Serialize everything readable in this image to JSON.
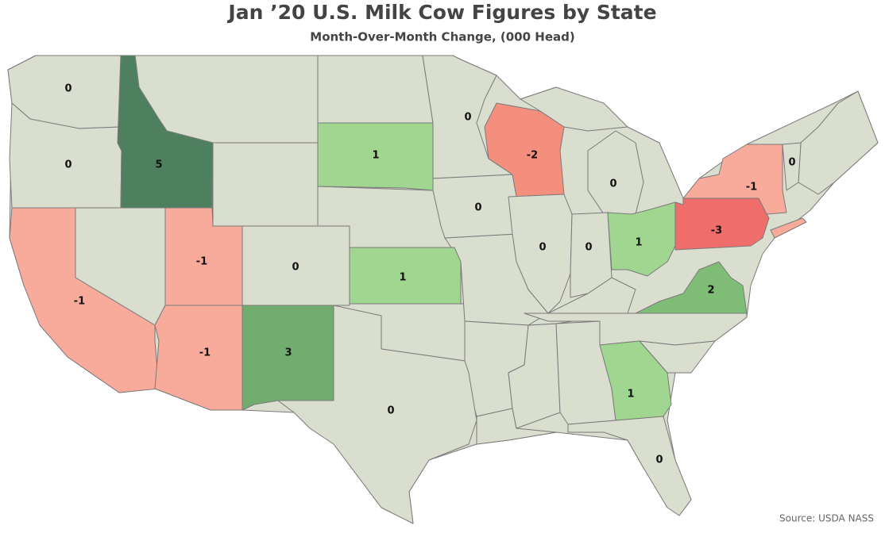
{
  "title": "Jan ’20 U.S. Milk Cow Figures by State",
  "subtitle": "Month-Over-Month Change, (000 Head)",
  "source": "Source: USDA NASS",
  "map": {
    "type": "choropleth",
    "regions": [
      {
        "value": 0,
        "color": "#d9dece"
      },
      {
        "value": 0,
        "color": "#d9dece"
      },
      {
        "value": 5,
        "color": "#4e8060"
      },
      {
        "value": -1,
        "color": "#f8ab9b"
      },
      {
        "value": -1,
        "color": "#f8ab9b"
      },
      {
        "value": -1,
        "color": "#f8ab9b"
      },
      {
        "value": 0,
        "color": "#d9dece"
      },
      {
        "value": 3,
        "color": "#72ad6f"
      },
      {
        "value": 1,
        "color": "#a0d68f"
      },
      {
        "value": 1,
        "color": "#a0d68f"
      },
      {
        "value": 0,
        "color": "#d9dece"
      },
      {
        "value": 0,
        "color": "#d9dece"
      },
      {
        "value": -2,
        "color": "#f48f7d"
      },
      {
        "value": 0,
        "color": "#d9dece"
      },
      {
        "value": 0,
        "color": "#d9dece"
      },
      {
        "value": 0,
        "color": "#d9dece"
      },
      {
        "value": 1,
        "color": "#a0d68f"
      },
      {
        "value": -3,
        "color": "#ef6e6c"
      },
      {
        "value": -1,
        "color": "#f8ab9b"
      },
      {
        "value": 0,
        "color": "#d9dece"
      },
      {
        "value": 2,
        "color": "#7fbc76"
      },
      {
        "value": 1,
        "color": "#a0d68f"
      },
      {
        "value": 0,
        "color": "#d9dece"
      },
      {
        "value": 0,
        "color": "#d9dece"
      }
    ]
  }
}
